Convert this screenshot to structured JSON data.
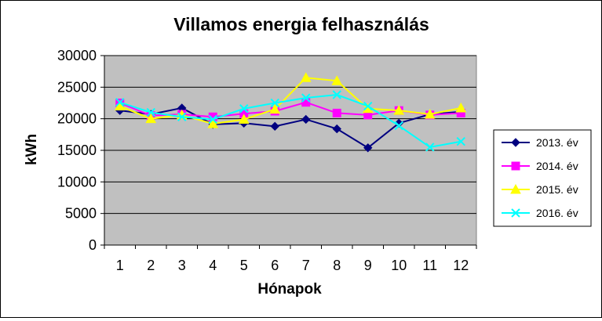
{
  "chart_data": {
    "type": "line",
    "title": "Villamos energia felhasználás",
    "xlabel": "Hónapok",
    "ylabel": "kWh",
    "ylim": [
      0,
      30000
    ],
    "ytick_step": 5000,
    "yticks": [
      "0",
      "5000",
      "10000",
      "15000",
      "20000",
      "25000",
      "30000"
    ],
    "categories": [
      "1",
      "2",
      "3",
      "4",
      "5",
      "6",
      "7",
      "8",
      "9",
      "10",
      "11",
      "12"
    ],
    "grid": true,
    "plot_background": "#c0c0c0",
    "legend_position": "right",
    "series": [
      {
        "name": "2013. év",
        "color": "#000080",
        "marker": "diamond",
        "values": [
          21300,
          20700,
          21700,
          19100,
          19300,
          18800,
          19900,
          18400,
          15400,
          19300,
          20700,
          21100
        ]
      },
      {
        "name": "2014. év",
        "color": "#ff00ff",
        "marker": "square",
        "values": [
          22500,
          20500,
          20700,
          20300,
          20800,
          21200,
          22600,
          20900,
          20600,
          21300,
          20600,
          20900
        ]
      },
      {
        "name": "2015. év",
        "color": "#ffff00",
        "marker": "triangle",
        "values": [
          22000,
          20000,
          20600,
          19200,
          19900,
          21500,
          26500,
          26000,
          21600,
          21300,
          20700,
          21700
        ]
      },
      {
        "name": "2016. év",
        "color": "#00ffff",
        "marker": "x",
        "values": [
          22600,
          21000,
          20300,
          19900,
          21600,
          22500,
          23300,
          23800,
          22000,
          18900,
          15500,
          16400
        ]
      }
    ]
  }
}
